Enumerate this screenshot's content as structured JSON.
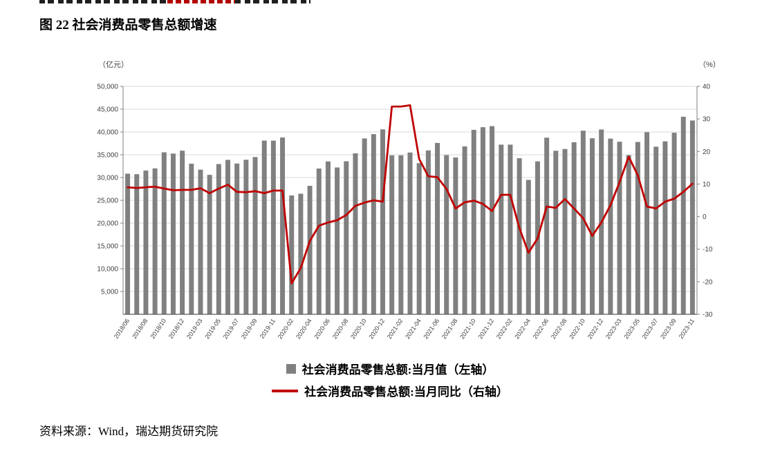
{
  "page": {
    "title": "图 22 社会消费品零售总额增速",
    "source": "资料来源：Wind，瑞达期货研究院"
  },
  "chart_data": {
    "type": "bar+line combo",
    "title": "社会消费品零售总额增速",
    "left_axis": {
      "unit": "（亿元）",
      "min": 0,
      "max": 50000,
      "step": 5000,
      "ticks": [
        "5,000",
        "10,000",
        "15,000",
        "20,000",
        "25,000",
        "30,000",
        "35,000",
        "40,000",
        "45,000",
        "50,000"
      ]
    },
    "right_axis": {
      "unit": "（%）",
      "min": -30,
      "max": 40,
      "step": 10,
      "ticks": [
        "-30",
        "-20",
        "-10",
        "0",
        "10",
        "20",
        "30",
        "40"
      ]
    },
    "label_interval": 2,
    "grid": "horizontal light gray lines, legend bottom center",
    "legend": [
      {
        "label": "社会消费品零售总额:当月值（左轴）",
        "series_type": "bar",
        "color": "#808080"
      },
      {
        "label": "社会消费品零售总额:当月同比（右轴）",
        "series_type": "line",
        "color": "#C00000"
      }
    ],
    "x": [
      "2018/06",
      "2018/07",
      "2018/08",
      "2018/09",
      "2018/10",
      "2018/11",
      "2018/12",
      "2019-02",
      "2019-03",
      "2019-04",
      "2019-05",
      "2019-06",
      "2019-07",
      "2019-08",
      "2019-09",
      "2019-10",
      "2019-11",
      "2019-12",
      "2020-02",
      "2020-03",
      "2020-04",
      "2020-05",
      "2020-06",
      "2020-07",
      "2020-08",
      "2020-09",
      "2020-10",
      "2020-11",
      "2020-12",
      "2021-01",
      "2021-02",
      "2021-03",
      "2021-04",
      "2021-05",
      "2021-06",
      "2021-07",
      "2021-08",
      "2021-09",
      "2021-10",
      "2021-11",
      "2021-12",
      "2022-01",
      "2022-02",
      "2022-03",
      "2022-04",
      "2022-05",
      "2022-06",
      "2022-07",
      "2022-08",
      "2022-09",
      "2022-10",
      "2022-11",
      "2022-12",
      "2023-02",
      "2023-03",
      "2023-04",
      "2023-05",
      "2023-06",
      "2023-07",
      "2023-08",
      "2023-09",
      "2023-10",
      "2023-11"
    ],
    "series": [
      {
        "name": "社会消费品零售总额:当月值（左轴）",
        "axis": "left",
        "values": [
          30842,
          30734,
          31542,
          32005,
          35534,
          35260,
          35893,
          33032,
          31726,
          30586,
          32956,
          33878,
          33073,
          33896,
          34495,
          38104,
          38094,
          38777,
          26065,
          26450,
          28178,
          31973,
          33526,
          32203,
          33571,
          35295,
          38576,
          39514,
          40566,
          34869,
          34869,
          35484,
          33153,
          35945,
          37586,
          34925,
          34395,
          36833,
          40454,
          41043,
          41269,
          37213,
          37213,
          34233,
          29483,
          33547,
          38742,
          35870,
          36258,
          37745,
          40271,
          38615,
          40542,
          38534,
          37855,
          34910,
          37803,
          39951,
          36761,
          37933,
          39826,
          43333,
          42505
        ]
      },
      {
        "name": "社会消费品零售总额:当月同比（右轴）",
        "axis": "right",
        "values": [
          9.0,
          8.8,
          9.0,
          9.2,
          8.6,
          8.1,
          8.2,
          8.2,
          8.7,
          7.2,
          8.6,
          9.8,
          7.6,
          7.5,
          7.8,
          7.2,
          8.0,
          8.0,
          -20.5,
          -15.8,
          -7.5,
          -2.8,
          -1.8,
          -1.1,
          0.5,
          3.3,
          4.3,
          5.0,
          4.6,
          33.8,
          33.8,
          34.2,
          17.7,
          12.4,
          12.1,
          8.5,
          2.5,
          4.4,
          4.9,
          3.9,
          1.7,
          6.7,
          6.7,
          -3.5,
          -11.1,
          -6.7,
          3.1,
          2.7,
          5.4,
          2.5,
          -0.5,
          -5.9,
          -1.8,
          3.5,
          10.6,
          18.4,
          12.7,
          3.1,
          2.5,
          4.6,
          5.5,
          7.6,
          10.1
        ]
      }
    ]
  }
}
